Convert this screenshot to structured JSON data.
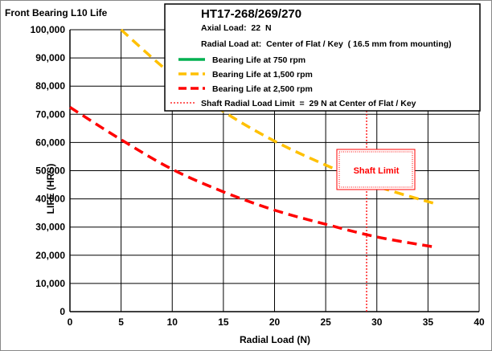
{
  "chart_data": {
    "type": "line",
    "title": "Front Bearing L10 Life",
    "xlabel": "Radial Load (N)",
    "ylabel": "LIFE (HRS)",
    "xlim": [
      0,
      40
    ],
    "ylim": [
      0,
      100000
    ],
    "x_ticks": [
      "0",
      "5",
      "10",
      "15",
      "20",
      "25",
      "30",
      "35",
      "40"
    ],
    "y_ticks": [
      "0",
      "10,000",
      "20,000",
      "30,000",
      "40,000",
      "50,000",
      "60,000",
      "70,000",
      "80,000",
      "90,000",
      "100,000"
    ],
    "grid": true,
    "legend_position": "top-right",
    "info": {
      "model": "HT17-268/269/270",
      "axial_load": "Axial Load:  22  N",
      "radial_load_at": "Radial Load at:  Center of Flat / Key  ( 16.5 mm from mounting)"
    },
    "series": [
      {
        "name": "Bearing Life at 750 rpm",
        "color": "#00b050",
        "style": "solid",
        "x": [],
        "y": []
      },
      {
        "name": "Bearing Life at 1,500 rpm",
        "color": "#ffc000",
        "style": "dashed",
        "x": [
          5,
          10,
          15,
          20,
          25,
          30,
          35.5
        ],
        "y": [
          100000,
          84000,
          71000,
          60500,
          52000,
          44500,
          38500
        ]
      },
      {
        "name": "Bearing Life at 2,500 rpm",
        "color": "#ff0000",
        "style": "dashed",
        "x": [
          0,
          5,
          10,
          15,
          20,
          25,
          30,
          35.5
        ],
        "y": [
          72500,
          61000,
          50500,
          42500,
          36000,
          31000,
          26500,
          23000
        ]
      }
    ],
    "limit_line": {
      "name": "Shaft Radial Load Limit  =  29 N at Center of Flat / Key",
      "x": 29,
      "color": "#ff0000",
      "style": "dotted",
      "label": "Shaft Limit"
    }
  }
}
